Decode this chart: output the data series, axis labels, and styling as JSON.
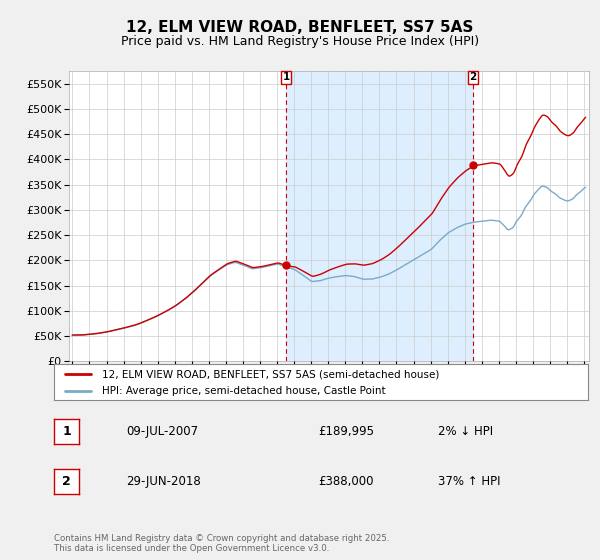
{
  "title": "12, ELM VIEW ROAD, BENFLEET, SS7 5AS",
  "subtitle": "Price paid vs. HM Land Registry's House Price Index (HPI)",
  "legend_line1": "12, ELM VIEW ROAD, BENFLEET, SS7 5AS (semi-detached house)",
  "legend_line2": "HPI: Average price, semi-detached house, Castle Point",
  "annotation1_label": "1",
  "annotation1_date": "09-JUL-2007",
  "annotation1_price": "£189,995",
  "annotation1_hpi": "2% ↓ HPI",
  "annotation1_year": 2007.52,
  "annotation1_value": 189995,
  "annotation2_label": "2",
  "annotation2_date": "29-JUN-2018",
  "annotation2_price": "£388,000",
  "annotation2_hpi": "37% ↑ HPI",
  "annotation2_year": 2018.49,
  "annotation2_value": 388000,
  "footer": "Contains HM Land Registry data © Crown copyright and database right 2025.\nThis data is licensed under the Open Government Licence v3.0.",
  "red_line_color": "#cc0000",
  "blue_line_color": "#7aaac8",
  "shade_color": "#ddeeff",
  "background_color": "#f0f0f0",
  "plot_bg_color": "#ffffff",
  "grid_color": "#cccccc",
  "ylim": [
    0,
    575000
  ],
  "yticks": [
    0,
    50000,
    100000,
    150000,
    200000,
    250000,
    300000,
    350000,
    400000,
    450000,
    500000,
    550000
  ],
  "title_fontsize": 11,
  "subtitle_fontsize": 9
}
